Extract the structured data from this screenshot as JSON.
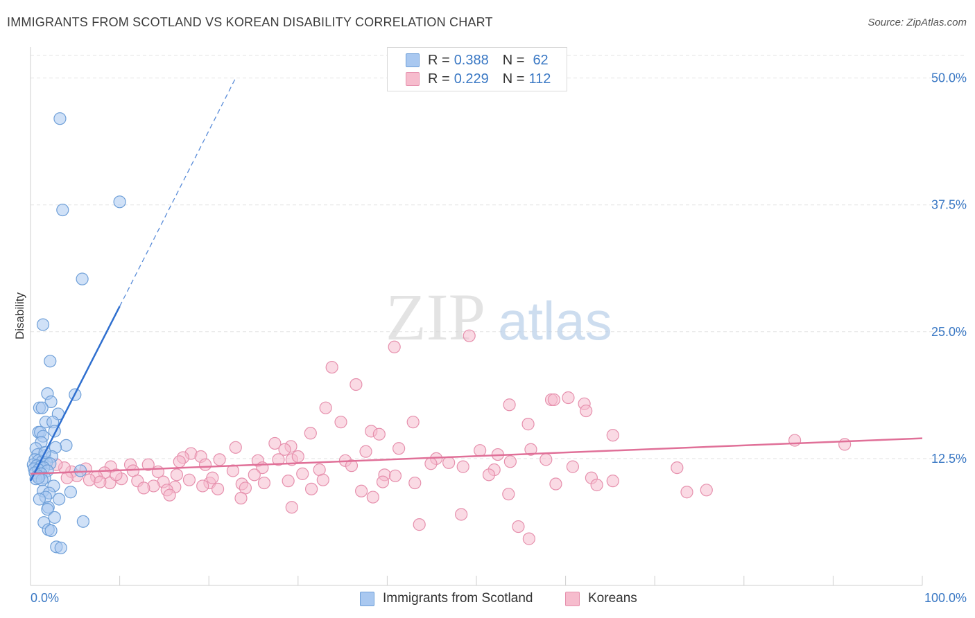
{
  "title": "IMMIGRANTS FROM SCOTLAND VS KOREAN DISABILITY CORRELATION CHART",
  "source": "Source: ZipAtlas.com",
  "watermark": {
    "zip": "ZIP",
    "atlas": "atlas"
  },
  "legend": {
    "r_label": "R =",
    "n_label": "N =",
    "scotland": {
      "r": "0.388",
      "n": "62"
    },
    "korean": {
      "r": "0.229",
      "n": "112"
    }
  },
  "bottom_legend": {
    "scotland": "Immigrants from Scotland",
    "korean": "Koreans"
  },
  "colors": {
    "scotland_fill": "#a9c8f0",
    "scotland_stroke": "#6e9fd8",
    "scotland_line": "#2f6fcf",
    "korean_fill": "#f6bccd",
    "korean_stroke": "#e690ad",
    "korean_line": "#e07098",
    "tick_text": "#3a78c4",
    "grid": "#e3e3e3"
  },
  "chart_data": {
    "type": "scatter",
    "title": "IMMIGRANTS FROM SCOTLAND VS KOREAN DISABILITY CORRELATION CHART",
    "xlabel": "",
    "ylabel": "Disability",
    "xlim": [
      0,
      100
    ],
    "ylim": [
      0,
      52.5
    ],
    "x_tick_labels": {
      "left": "0.0%",
      "right": "100.0%"
    },
    "y_ticks": [
      12.5,
      25.0,
      37.5,
      50.0
    ],
    "y_tick_labels": [
      "12.5%",
      "25.0%",
      "37.5%",
      "50.0%"
    ],
    "grid": "horizontal dashed",
    "legend_position": "top-center",
    "series": [
      {
        "name": "Immigrants from Scotland",
        "r": 0.388,
        "n": 62,
        "trend": {
          "x0": 0.0,
          "y0": 10.3,
          "x1": 10.0,
          "y1": 27.5,
          "dashed_to_x": 23.0,
          "dashed_to_y": 50.0
        },
        "points": [
          [
            3.3,
            46.0
          ],
          [
            10.0,
            37.8
          ],
          [
            3.6,
            37.0
          ],
          [
            5.8,
            30.2
          ],
          [
            1.4,
            25.7
          ],
          [
            2.2,
            22.1
          ],
          [
            1.9,
            18.9
          ],
          [
            5.0,
            18.8
          ],
          [
            2.3,
            18.1
          ],
          [
            1.0,
            17.5
          ],
          [
            1.3,
            17.5
          ],
          [
            3.1,
            16.9
          ],
          [
            1.7,
            16.1
          ],
          [
            2.5,
            16.1
          ],
          [
            0.9,
            15.1
          ],
          [
            1.1,
            15.1
          ],
          [
            2.7,
            15.2
          ],
          [
            1.4,
            14.7
          ],
          [
            1.2,
            14.1
          ],
          [
            4.0,
            13.8
          ],
          [
            0.6,
            13.5
          ],
          [
            2.8,
            13.6
          ],
          [
            0.8,
            12.9
          ],
          [
            1.6,
            12.8
          ],
          [
            2.4,
            12.7
          ],
          [
            0.5,
            12.4
          ],
          [
            0.9,
            12.3
          ],
          [
            1.3,
            12.2
          ],
          [
            1.8,
            12.1
          ],
          [
            2.2,
            12.0
          ],
          [
            0.3,
            11.9
          ],
          [
            0.7,
            11.8
          ],
          [
            1.1,
            11.7
          ],
          [
            1.5,
            11.6
          ],
          [
            0.4,
            11.5
          ],
          [
            0.9,
            11.4
          ],
          [
            1.9,
            11.3
          ],
          [
            5.6,
            11.3
          ],
          [
            0.5,
            11.1
          ],
          [
            1.2,
            11.0
          ],
          [
            0.8,
            10.8
          ],
          [
            1.6,
            10.6
          ],
          [
            0.6,
            10.5
          ],
          [
            1.3,
            10.4
          ],
          [
            0.9,
            10.6
          ],
          [
            2.6,
            9.8
          ],
          [
            1.4,
            9.3
          ],
          [
            2.1,
            9.1
          ],
          [
            4.5,
            9.2
          ],
          [
            1.7,
            8.7
          ],
          [
            1.0,
            8.5
          ],
          [
            3.2,
            8.5
          ],
          [
            2.0,
            7.7
          ],
          [
            1.9,
            7.5
          ],
          [
            2.7,
            6.7
          ],
          [
            1.5,
            6.2
          ],
          [
            5.9,
            6.3
          ],
          [
            2.0,
            5.5
          ],
          [
            2.3,
            5.4
          ],
          [
            2.9,
            3.8
          ],
          [
            3.4,
            3.7
          ],
          [
            1.6,
            13.1
          ]
        ]
      },
      {
        "name": "Koreans",
        "r": 0.229,
        "n": 112,
        "trend": {
          "x0": 0.0,
          "y0": 11.0,
          "x1": 100.0,
          "y1": 14.5
        },
        "points": [
          [
            49.2,
            24.6
          ],
          [
            40.8,
            23.5
          ],
          [
            33.8,
            21.5
          ],
          [
            36.5,
            19.8
          ],
          [
            58.4,
            18.3
          ],
          [
            58.7,
            18.3
          ],
          [
            53.7,
            17.8
          ],
          [
            60.3,
            18.5
          ],
          [
            62.1,
            17.9
          ],
          [
            33.1,
            17.5
          ],
          [
            62.3,
            17.2
          ],
          [
            34.8,
            16.1
          ],
          [
            42.9,
            16.1
          ],
          [
            38.2,
            15.2
          ],
          [
            55.8,
            15.9
          ],
          [
            31.4,
            15.0
          ],
          [
            39.1,
            14.9
          ],
          [
            65.3,
            14.8
          ],
          [
            85.7,
            14.3
          ],
          [
            91.3,
            13.9
          ],
          [
            27.4,
            14.0
          ],
          [
            29.2,
            13.7
          ],
          [
            23.0,
            13.6
          ],
          [
            28.5,
            13.4
          ],
          [
            41.3,
            13.5
          ],
          [
            37.6,
            13.2
          ],
          [
            50.4,
            13.3
          ],
          [
            52.4,
            12.9
          ],
          [
            56.1,
            13.4
          ],
          [
            18.0,
            13.0
          ],
          [
            19.1,
            12.7
          ],
          [
            17.1,
            12.6
          ],
          [
            21.2,
            12.4
          ],
          [
            29.3,
            12.4
          ],
          [
            30.0,
            12.7
          ],
          [
            25.5,
            12.3
          ],
          [
            27.8,
            12.4
          ],
          [
            35.3,
            12.3
          ],
          [
            45.5,
            12.5
          ],
          [
            46.9,
            12.1
          ],
          [
            53.8,
            12.2
          ],
          [
            57.8,
            12.4
          ],
          [
            16.7,
            12.2
          ],
          [
            13.2,
            11.9
          ],
          [
            11.2,
            11.9
          ],
          [
            9.0,
            11.7
          ],
          [
            19.6,
            11.9
          ],
          [
            26.0,
            11.6
          ],
          [
            32.4,
            11.4
          ],
          [
            36.0,
            11.8
          ],
          [
            48.5,
            11.7
          ],
          [
            52.0,
            11.4
          ],
          [
            60.8,
            11.7
          ],
          [
            72.5,
            11.6
          ],
          [
            6.2,
            11.5
          ],
          [
            8.3,
            11.1
          ],
          [
            11.5,
            11.3
          ],
          [
            14.3,
            11.2
          ],
          [
            16.4,
            10.9
          ],
          [
            22.7,
            11.3
          ],
          [
            25.1,
            10.9
          ],
          [
            30.5,
            11.0
          ],
          [
            39.7,
            10.9
          ],
          [
            40.9,
            10.8
          ],
          [
            51.4,
            10.9
          ],
          [
            62.9,
            10.6
          ],
          [
            4.6,
            11.2
          ],
          [
            5.2,
            10.8
          ],
          [
            7.4,
            10.7
          ],
          [
            10.2,
            10.5
          ],
          [
            12.0,
            10.3
          ],
          [
            14.9,
            10.2
          ],
          [
            17.8,
            10.4
          ],
          [
            20.1,
            10.1
          ],
          [
            23.7,
            10.0
          ],
          [
            28.9,
            10.3
          ],
          [
            32.8,
            10.4
          ],
          [
            39.5,
            10.2
          ],
          [
            43.1,
            10.1
          ],
          [
            65.3,
            10.3
          ],
          [
            58.9,
            10.0
          ],
          [
            6.6,
            10.4
          ],
          [
            8.9,
            10.1
          ],
          [
            13.8,
            9.8
          ],
          [
            16.2,
            9.7
          ],
          [
            21.0,
            9.5
          ],
          [
            24.1,
            9.6
          ],
          [
            31.5,
            9.5
          ],
          [
            37.1,
            9.3
          ],
          [
            53.6,
            9.0
          ],
          [
            73.6,
            9.2
          ],
          [
            75.8,
            9.4
          ],
          [
            12.7,
            9.6
          ],
          [
            15.3,
            9.4
          ],
          [
            19.3,
            9.8
          ],
          [
            26.2,
            10.1
          ],
          [
            7.8,
            10.2
          ],
          [
            15.6,
            8.9
          ],
          [
            23.6,
            8.6
          ],
          [
            38.4,
            8.7
          ],
          [
            29.3,
            7.7
          ],
          [
            48.3,
            7.0
          ],
          [
            43.6,
            6.0
          ],
          [
            54.7,
            5.8
          ],
          [
            55.9,
            4.6
          ],
          [
            63.5,
            9.9
          ],
          [
            3.8,
            11.6
          ],
          [
            2.9,
            11.9
          ],
          [
            4.1,
            10.6
          ],
          [
            9.6,
            10.9
          ],
          [
            20.4,
            10.6
          ],
          [
            44.9,
            12.0
          ]
        ]
      }
    ]
  }
}
